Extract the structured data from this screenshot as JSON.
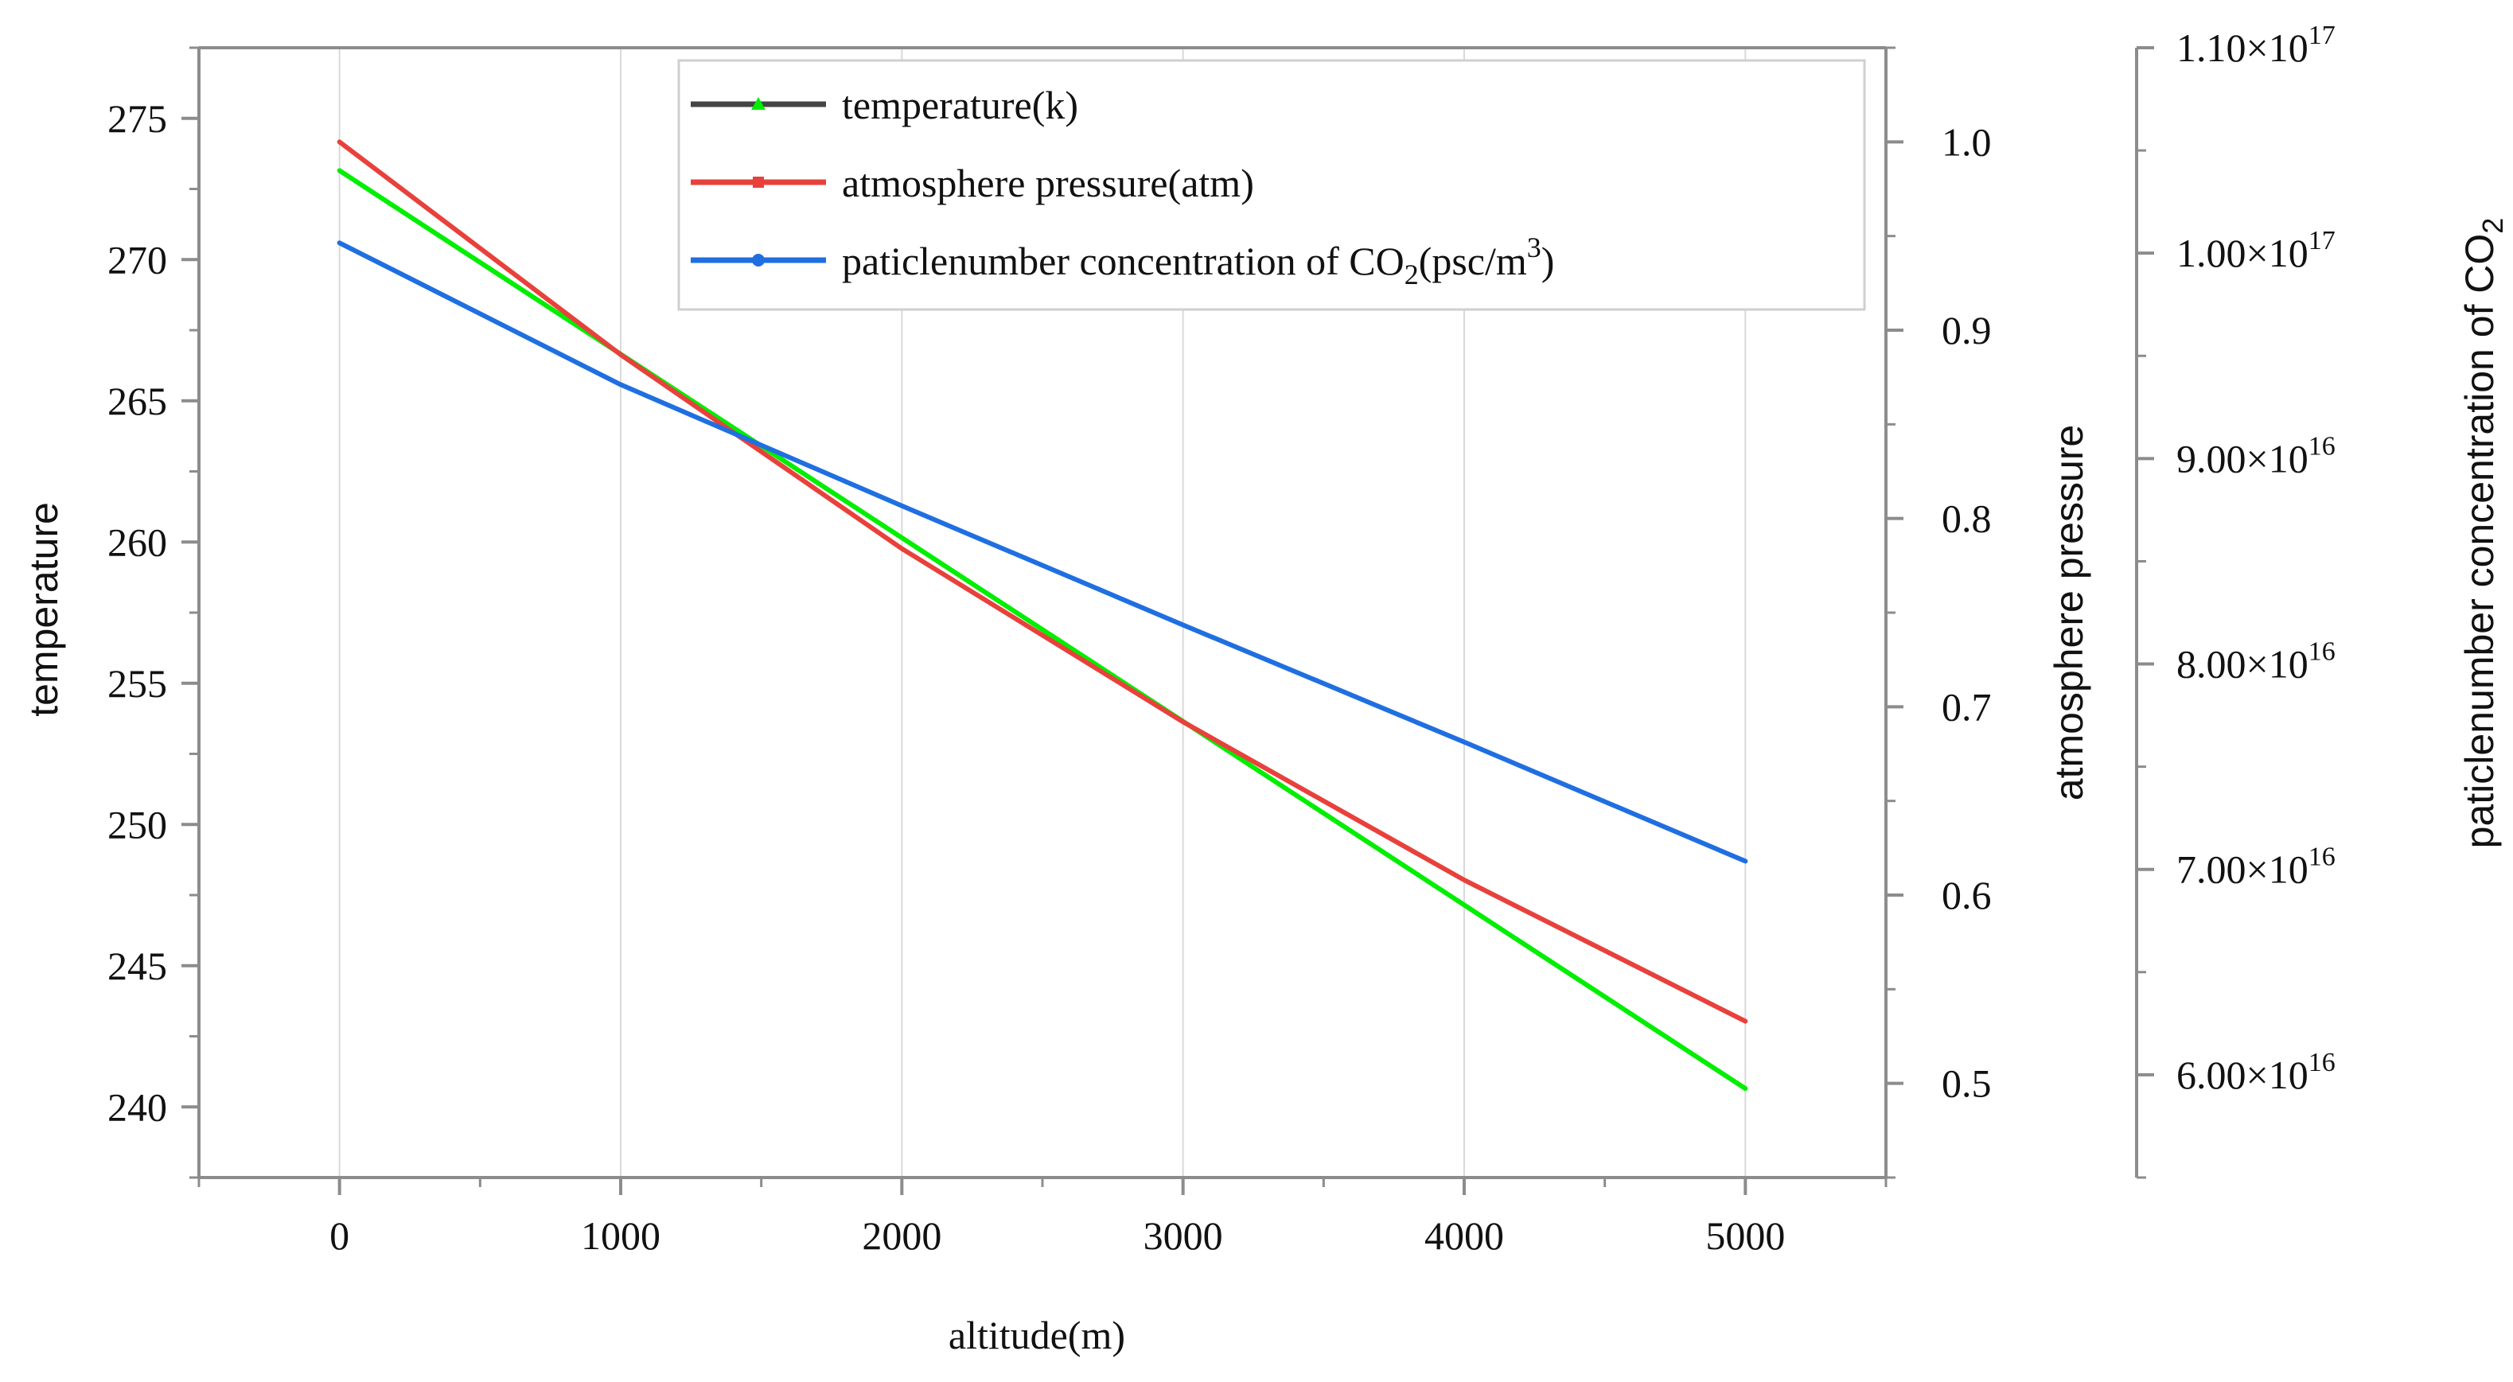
{
  "chart_data": {
    "type": "line",
    "xlabel": "altitude(m)",
    "x": [
      0,
      1000,
      2000,
      3000,
      4000,
      5000
    ],
    "xlim": [
      -500,
      5500
    ],
    "x_ticks": [
      "0",
      "1000",
      "2000",
      "3000",
      "4000",
      "5000"
    ],
    "grid": true,
    "axes": {
      "left": {
        "label": "temperature",
        "ylim": [
          237.5,
          277.5
        ],
        "ticks": [
          "240",
          "245",
          "250",
          "255",
          "260",
          "265",
          "270",
          "275"
        ]
      },
      "right1": {
        "label": "atmosphere pressure",
        "ylim": [
          0.45,
          1.05
        ],
        "ticks": [
          "0.5",
          "0.6",
          "0.7",
          "0.8",
          "0.9",
          "1.0"
        ]
      },
      "right2": {
        "label_main": "paticlenumber concentration of CO",
        "label_sub": "2",
        "ylim": [
          5.5e+16,
          1.1e+17
        ],
        "ticks": [
          {
            "mant": "6.00×10",
            "exp": "16"
          },
          {
            "mant": "7.00×10",
            "exp": "16"
          },
          {
            "mant": "8.00×10",
            "exp": "16"
          },
          {
            "mant": "9.00×10",
            "exp": "16"
          },
          {
            "mant": "1.00×10",
            "exp": "17"
          },
          {
            "mant": "1.10×10",
            "exp": "17"
          }
        ]
      }
    },
    "series": [
      {
        "name": "temperature(k)",
        "axis": "left",
        "color": "#00ee00",
        "legend_color": "#444444",
        "marker": "triangle",
        "values": [
          273.15,
          266.65,
          260.15,
          253.65,
          247.15,
          240.65
        ]
      },
      {
        "name": "atmosphere pressure(atm)",
        "axis": "right1",
        "color": "#e8413c",
        "legend_color": "#e8413c",
        "marker": "square",
        "values": [
          1.0,
          0.887,
          0.784,
          0.692,
          0.608,
          0.533
        ]
      },
      {
        "name": "paticlenumber concentration of CO2(psc/m3)",
        "axis": "right2",
        "color": "#1f6fe0",
        "legend_color": "#1f6fe0",
        "marker": "circle",
        "values": [
          1.005e+17,
          9.36e+16,
          8.77e+16,
          8.19e+16,
          7.62e+16,
          7.04e+16
        ]
      }
    ],
    "legend": {
      "placement": "top-center",
      "entries": [
        {
          "text": "temperature(k)"
        },
        {
          "text": "atmosphere pressure(atm)"
        },
        {
          "text_main": "paticlenumber concentration of CO",
          "text_sub": "2",
          "text_mid": "(psc/m",
          "text_sup": "3",
          "text_end": ")"
        }
      ]
    }
  }
}
